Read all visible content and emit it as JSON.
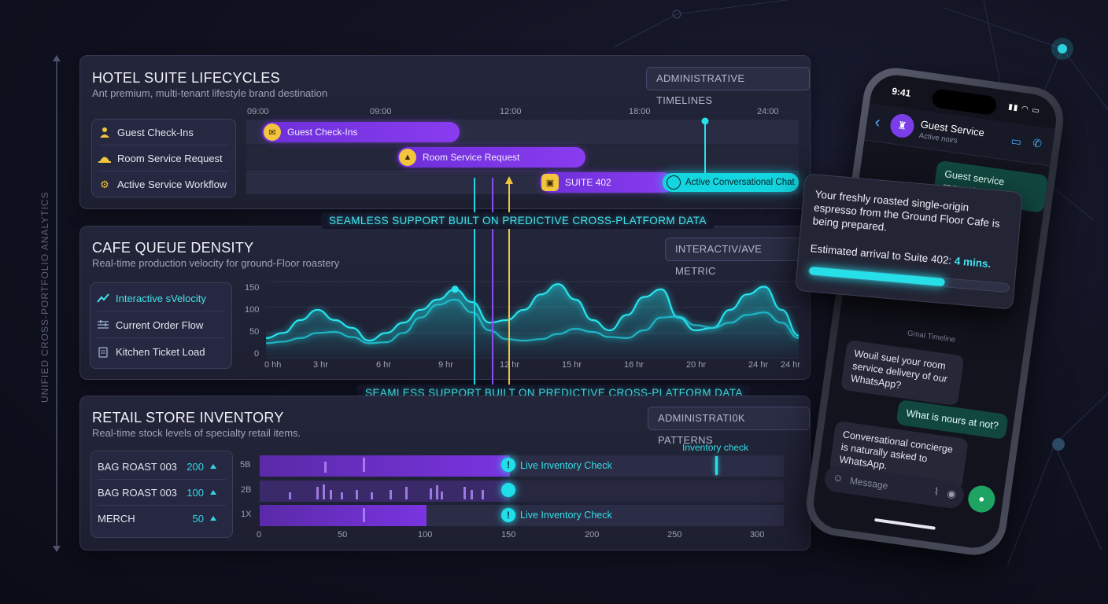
{
  "side_label": "UNIFIED CROSS-PORTFOLIO ANALYTICS",
  "colors": {
    "accent_cyan": "#1fe0ea",
    "accent_purple": "#7a34e0",
    "accent_yellow": "#f2c53d",
    "whatsapp_green": "#11473f"
  },
  "hotel": {
    "title": "HOTEL SUITE LIFECYCLES",
    "subtitle": "Ant premium, multi-tenant lifestyle brand destination",
    "badge": "ADMINISTRATIVE TIMELINES",
    "time_ticks": [
      "09:00",
      "09:00",
      "12:00",
      "18:00",
      "24:00"
    ],
    "legend": [
      {
        "label": "Guest Check-Ins",
        "icon": "person-icon"
      },
      {
        "label": "Room Service Request",
        "icon": "cloche-icon"
      },
      {
        "label": "Active Service Workflow",
        "icon": "gears-icon"
      }
    ],
    "bars": [
      {
        "label": "Guest Check-Ins",
        "icon": "chat-icon"
      },
      {
        "label": "Room Service Request",
        "icon": "cloche-icon"
      },
      {
        "label": "SUITE 402",
        "icon": "badge-icon"
      }
    ],
    "active_pill": "Active Conversational Chat"
  },
  "banner_1": "SEAMLESS SUPPORT BUILT ON PREDICTIVE CROSS-PLATFORM DATA",
  "banner_2": "SEAMLESS SUPPORT BUILT ON PREDICTIVE CROSS-PLATFORM DATA",
  "cafe": {
    "title": "CAFE QUEUE DENSITY",
    "subtitle": "Real-time production velocity for ground-Floor roastery",
    "badge": "INTERACTIV/AVE METRIC",
    "legend": [
      {
        "label": "Interactive sVelocity",
        "icon": "trend-icon"
      },
      {
        "label": "Current Order Flow",
        "icon": "sliders-icon"
      },
      {
        "label": "Kitchen Ticket Load",
        "icon": "ticket-icon"
      }
    ],
    "chart_data": {
      "type": "line",
      "y_ticks": [
        "150",
        "100",
        "50",
        "0"
      ],
      "ylim": [
        0,
        150
      ],
      "x_ticks": [
        "0 hh",
        "3 hr",
        "6 hr",
        "9 hr",
        "12 hr",
        "15 hr",
        "16 hr",
        "20 hr",
        "24 hr",
        "24 hr"
      ],
      "series": [
        {
          "values": [
            40,
            50,
            75,
            95,
            75,
            60,
            35,
            50,
            70,
            95,
            115,
            135,
            110,
            70,
            75,
            95,
            125,
            145,
            115,
            75,
            55,
            85,
            120,
            135,
            80,
            55,
            60,
            95,
            125,
            140,
            95,
            45
          ]
        },
        {
          "values": [
            30,
            33,
            40,
            50,
            52,
            42,
            30,
            32,
            50,
            80,
            105,
            115,
            90,
            55,
            38,
            35,
            38,
            48,
            58,
            52,
            42,
            40,
            55,
            80,
            82,
            65,
            60,
            70,
            85,
            90,
            70,
            40
          ]
        }
      ]
    }
  },
  "retail": {
    "title": "RETAIL STORE INVENTORY",
    "subtitle": "Real-time stock levels of specialty retail items.",
    "badge": "ADMINISTRATI0K PATTERNS",
    "legend": [
      {
        "label": "BAG ROAST 003",
        "value": "200"
      },
      {
        "label": "BAG ROAST 003",
        "value": "100"
      },
      {
        "label": "MERCH",
        "value": "50"
      }
    ],
    "row_labels": [
      "5B",
      "2B",
      "1X"
    ],
    "x_ticks": [
      "0",
      "50",
      "100",
      "150",
      "200",
      "250",
      "300"
    ],
    "xlim": [
      0,
      300
    ],
    "bars": [
      150,
      150,
      100
    ],
    "live_marker": 150,
    "live_tag_1": "Live Inventory Check",
    "live_tag_2": "Live Inventory Check",
    "check_label": "Inventory check",
    "check_value": 275
  },
  "phone": {
    "time": "9:41",
    "contact": "Guest Service",
    "presence": "Active noirs",
    "bubble_1": "Guest service request",
    "notification": "Your freshly roasted single-origin espresso from the Ground Floor Cafe is being prepared.",
    "eta_prefix": "Estimated arrival to Suite 402:",
    "eta_value": "4 mins.",
    "progress": 0.68,
    "stamp": "Gmat Timeline",
    "bubble_2": "Wouil suel your room service delivery of our WhatsApp?",
    "bubble_3": "What is nours at not?",
    "bubble_4": "Conversational concierge is naturally asked to WhatsApp.",
    "input_placeholder": "Message"
  }
}
